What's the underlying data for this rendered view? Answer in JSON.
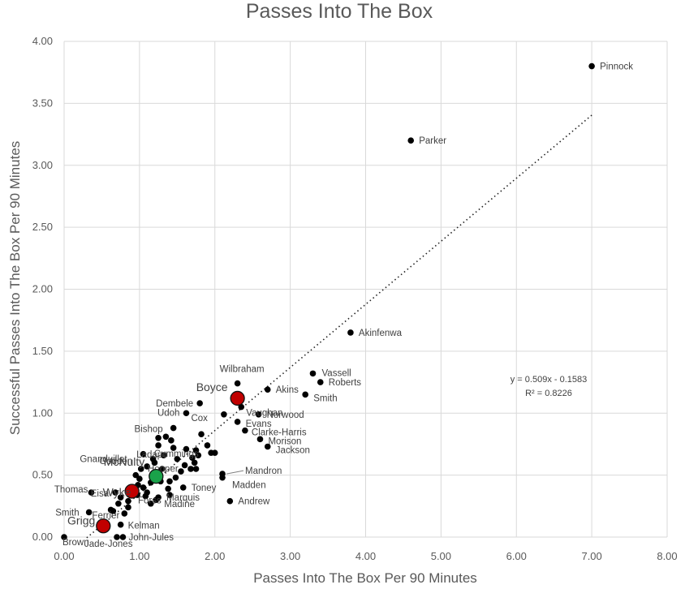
{
  "chart_data": {
    "type": "scatter",
    "title": "Passes Into The Box",
    "xlabel": "Passes Into The Box Per 90 Minutes",
    "ylabel": "Successful Passes Into The Box Per 90 Minutes",
    "xlim": [
      0,
      8
    ],
    "ylim": [
      0,
      4
    ],
    "x_ticks": [
      "0.00",
      "1.00",
      "2.00",
      "3.00",
      "4.00",
      "5.00",
      "6.00",
      "7.00",
      "8.00"
    ],
    "y_ticks": [
      "0.00",
      "0.50",
      "1.00",
      "1.50",
      "2.00",
      "2.50",
      "3.00",
      "3.50",
      "4.00"
    ],
    "grid": true,
    "trendline": {
      "slope": 0.509,
      "intercept": -0.1583,
      "x_range": [
        0.3,
        7.0
      ],
      "equation": "y = 0.509x - 0.1583",
      "r_squared": "R² = 0.8226"
    },
    "highlighted": [
      {
        "name": "Boyce",
        "x": 2.3,
        "y": 1.12,
        "color": "#c00000"
      },
      {
        "name": "McNulty",
        "x": 1.22,
        "y": 0.49,
        "color": "#1aa24a"
      },
      {
        "name": "Wyke",
        "x": 0.9,
        "y": 0.37,
        "color": "#c00000"
      },
      {
        "name": "Grigg",
        "x": 0.52,
        "y": 0.09,
        "color": "#c00000"
      }
    ],
    "labeled_points": [
      {
        "name": "Pinnock",
        "x": 7.0,
        "y": 3.8
      },
      {
        "name": "Parker",
        "x": 4.6,
        "y": 3.2
      },
      {
        "name": "Akinfenwa",
        "x": 3.8,
        "y": 1.65
      },
      {
        "name": "Vassell",
        "x": 3.3,
        "y": 1.32
      },
      {
        "name": "Roberts",
        "x": 3.4,
        "y": 1.25
      },
      {
        "name": "Smith",
        "x": 3.2,
        "y": 1.15
      },
      {
        "name": "Akins",
        "x": 2.7,
        "y": 1.19
      },
      {
        "name": "Wilbraham",
        "x": 2.3,
        "y": 1.24
      },
      {
        "name": "Vaughan",
        "x": 2.35,
        "y": 1.05
      },
      {
        "name": "Norwood",
        "x": 2.58,
        "y": 0.99
      },
      {
        "name": "Evans",
        "x": 2.3,
        "y": 0.93
      },
      {
        "name": "Clarke-Harris",
        "x": 2.4,
        "y": 0.86
      },
      {
        "name": "Morison",
        "x": 2.6,
        "y": 0.79
      },
      {
        "name": "Jackson",
        "x": 2.7,
        "y": 0.73
      },
      {
        "name": "Dembele",
        "x": 1.8,
        "y": 1.08
      },
      {
        "name": "Udoh",
        "x": 1.62,
        "y": 1.0
      },
      {
        "name": "Cox",
        "x": 2.12,
        "y": 0.99
      },
      {
        "name": "Bishop",
        "x": 1.45,
        "y": 0.88
      },
      {
        "name": "Cummings",
        "x": 2.0,
        "y": 0.68
      },
      {
        "name": "Ladapo",
        "x": 1.75,
        "y": 0.7
      },
      {
        "name": "Gnanduillet",
        "x": 1.05,
        "y": 0.67
      },
      {
        "name": "Hopper",
        "x": 1.73,
        "y": 0.6
      },
      {
        "name": "Godden",
        "x": 1.1,
        "y": 0.57
      },
      {
        "name": "Mandron",
        "x": 2.1,
        "y": 0.51
      },
      {
        "name": "Madden",
        "x": 2.1,
        "y": 0.48
      },
      {
        "name": "Toney",
        "x": 1.58,
        "y": 0.4
      },
      {
        "name": "Marquis",
        "x": 1.25,
        "y": 0.32
      },
      {
        "name": "Madine",
        "x": 1.22,
        "y": 0.3
      },
      {
        "name": "Andrew",
        "x": 2.2,
        "y": 0.29
      },
      {
        "name": "Thomas",
        "x": 0.36,
        "y": 0.36
      },
      {
        "name": "Eisa",
        "x": 0.68,
        "y": 0.36
      },
      {
        "name": "Forss",
        "x": 0.85,
        "y": 0.29
      },
      {
        "name": "Ferrier",
        "x": 0.8,
        "y": 0.19
      },
      {
        "name": "Smith",
        "x": 0.33,
        "y": 0.2
      },
      {
        "name": "Kelman",
        "x": 0.75,
        "y": 0.1
      },
      {
        "name": "John-Jules",
        "x": 0.78,
        "y": 0.0
      },
      {
        "name": "Jade-Jones",
        "x": 0.7,
        "y": 0.0
      },
      {
        "name": "Brown",
        "x": 0.0,
        "y": 0.0
      }
    ],
    "other_points": [
      [
        1.95,
        0.68
      ],
      [
        1.7,
        0.64
      ],
      [
        1.6,
        0.58
      ],
      [
        1.45,
        0.72
      ],
      [
        1.5,
        0.63
      ],
      [
        1.35,
        0.81
      ],
      [
        1.3,
        0.55
      ],
      [
        1.4,
        0.45
      ],
      [
        1.2,
        0.6
      ],
      [
        1.15,
        0.44
      ],
      [
        1.05,
        0.4
      ],
      [
        0.98,
        0.42
      ],
      [
        1.1,
        0.36
      ],
      [
        1.0,
        0.47
      ],
      [
        1.25,
        0.74
      ],
      [
        1.82,
        0.83
      ],
      [
        1.55,
        0.53
      ],
      [
        1.68,
        0.55
      ],
      [
        1.42,
        0.78
      ],
      [
        1.32,
        0.66
      ],
      [
        0.62,
        0.22
      ],
      [
        0.65,
        0.21
      ],
      [
        0.72,
        0.27
      ],
      [
        0.75,
        0.32
      ],
      [
        1.18,
        0.63
      ],
      [
        1.28,
        0.45
      ],
      [
        1.48,
        0.48
      ],
      [
        1.15,
        0.27
      ],
      [
        1.9,
        0.74
      ],
      [
        1.78,
        0.66
      ],
      [
        1.62,
        0.71
      ],
      [
        1.38,
        0.39
      ],
      [
        1.02,
        0.55
      ],
      [
        0.95,
        0.5
      ],
      [
        1.08,
        0.33
      ],
      [
        1.4,
        0.34
      ],
      [
        0.85,
        0.24
      ],
      [
        0.97,
        0.34
      ],
      [
        1.25,
        0.8
      ],
      [
        1.75,
        0.55
      ]
    ]
  }
}
